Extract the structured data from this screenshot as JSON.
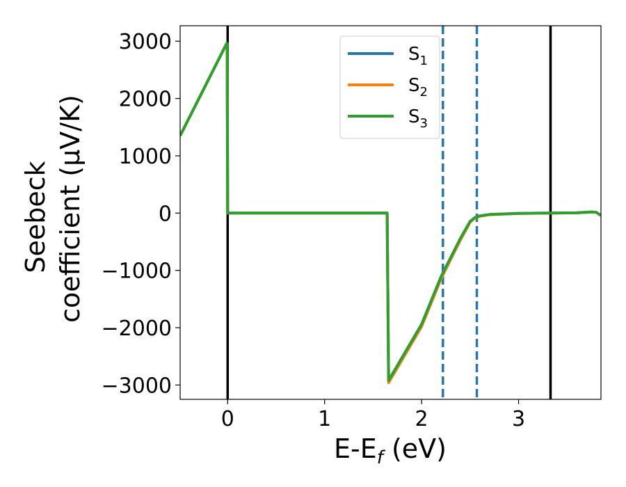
{
  "chart_data": {
    "type": "line",
    "xlabel": "E-E",
    "xlabel_sub": "f",
    "xlabel_unit": " (eV)",
    "ylabel_line1": "Seebeck",
    "ylabel_line2": "coefficient  (μV/K)",
    "xlim": [
      -0.49,
      3.85
    ],
    "ylim": [
      -3250,
      3270
    ],
    "xticks": [
      0,
      1,
      2,
      3
    ],
    "xtick_labels": [
      "0",
      "1",
      "2",
      "3"
    ],
    "yticks": [
      3000,
      2000,
      1000,
      0,
      -1000,
      -2000,
      -3000
    ],
    "ytick_labels": [
      "3000",
      "2000",
      "1000",
      "0",
      "−1000",
      "−2000",
      "−3000"
    ],
    "grid": false,
    "legend_position": "top-center",
    "series": [
      {
        "name": "S",
        "sub": "1",
        "color": "#1f77b4",
        "x": [
          -0.49,
          -0.01,
          -0.005,
          0.0,
          1.64,
          1.645,
          1.66,
          2.0,
          2.2,
          2.4,
          2.5,
          2.55,
          2.6,
          2.7,
          3.0,
          3.33,
          3.6,
          3.75,
          3.8,
          3.85
        ],
        "y": [
          1350,
          2960,
          2960,
          0,
          0,
          0,
          -2930,
          -1950,
          -1120,
          -450,
          -150,
          -80,
          -50,
          -25,
          -5,
          0,
          5,
          20,
          15,
          -40
        ]
      },
      {
        "name": "S",
        "sub": "2",
        "color": "#ff7f0e",
        "x": [
          -0.49,
          -0.01,
          -0.005,
          0.0,
          1.64,
          1.645,
          1.66,
          2.0,
          2.2,
          2.4,
          2.5,
          2.55,
          2.6,
          2.7,
          3.0,
          3.33,
          3.6,
          3.75,
          3.8,
          3.85
        ],
        "y": [
          1350,
          2960,
          2960,
          0,
          0,
          0,
          -2960,
          -1980,
          -1150,
          -470,
          -160,
          -85,
          -55,
          -28,
          -6,
          0,
          5,
          20,
          15,
          -40
        ]
      },
      {
        "name": "S",
        "sub": "3",
        "color": "#2ca02c",
        "x": [
          -0.49,
          -0.01,
          -0.005,
          0.0,
          1.64,
          1.645,
          1.66,
          2.0,
          2.2,
          2.4,
          2.5,
          2.55,
          2.6,
          2.7,
          3.0,
          3.33,
          3.6,
          3.75,
          3.8,
          3.85
        ],
        "y": [
          1350,
          2960,
          2960,
          0,
          0,
          0,
          -2920,
          -1940,
          -1110,
          -440,
          -145,
          -78,
          -48,
          -24,
          -5,
          0,
          5,
          20,
          15,
          -40
        ]
      }
    ],
    "vlines": [
      {
        "x": 0.0,
        "color": "#000000",
        "style": "solid"
      },
      {
        "x": 3.33,
        "color": "#000000",
        "style": "solid"
      },
      {
        "x": 2.22,
        "color": "#1f77b4",
        "style": "dashed"
      },
      {
        "x": 2.57,
        "color": "#1f77b4",
        "style": "dashed"
      }
    ]
  }
}
